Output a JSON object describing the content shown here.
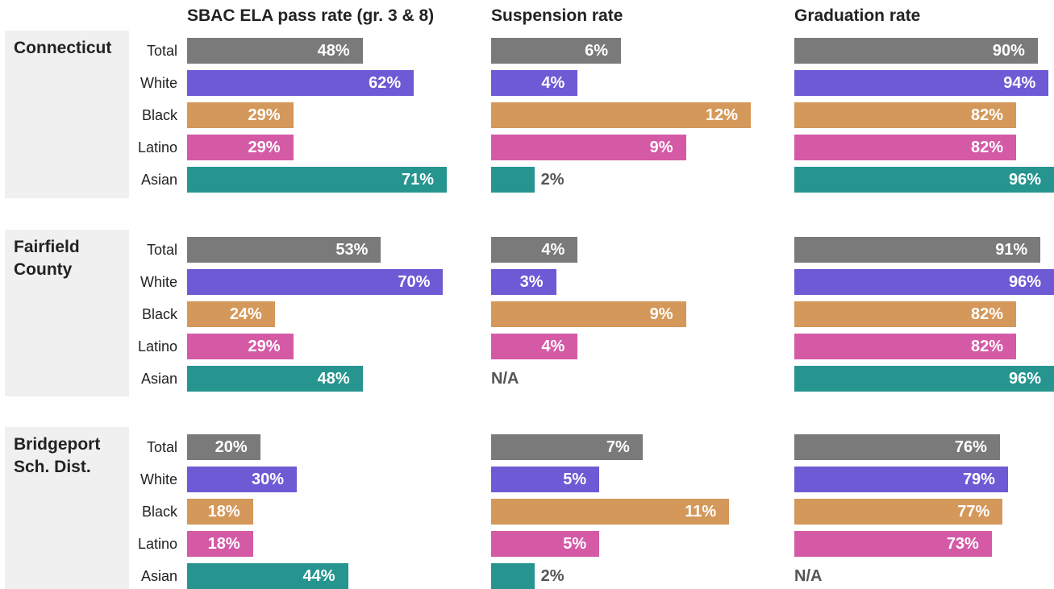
{
  "chart_data": {
    "type": "bar",
    "metrics": [
      "SBAC ELA pass rate (gr. 3 & 8)",
      "Suspension rate",
      "Graduation rate"
    ],
    "categories": [
      "Total",
      "White",
      "Black",
      "Latino",
      "Asian"
    ],
    "colors": [
      "#7a7a7a",
      "#6e5ad4",
      "#d4985a",
      "#d45aa6",
      "#26958f"
    ],
    "groups": [
      {
        "name": "Connecticut",
        "values": [
          [
            48,
            62,
            29,
            29,
            71
          ],
          [
            6,
            4,
            12,
            9,
            2
          ],
          [
            90,
            94,
            82,
            82,
            96
          ]
        ],
        "value_labels": [
          [
            "48%",
            "62%",
            "29%",
            "29%",
            "71%"
          ],
          [
            "6%",
            "4%",
            "12%",
            "9%",
            "2%"
          ],
          [
            "90%",
            "94%",
            "82%",
            "82%",
            "96%"
          ]
        ]
      },
      {
        "name": "Fairfield County",
        "values": [
          [
            53,
            70,
            24,
            29,
            48
          ],
          [
            4,
            3,
            9,
            4,
            null
          ],
          [
            91,
            96,
            82,
            82,
            96
          ]
        ],
        "value_labels": [
          [
            "53%",
            "70%",
            "24%",
            "29%",
            "48%"
          ],
          [
            "4%",
            "3%",
            "9%",
            "4%",
            "N/A"
          ],
          [
            "91%",
            "96%",
            "82%",
            "82%",
            "96%"
          ]
        ]
      },
      {
        "name": "Bridgeport Sch. Dist.",
        "values": [
          [
            20,
            30,
            18,
            18,
            44
          ],
          [
            7,
            5,
            11,
            5,
            2
          ],
          [
            76,
            79,
            77,
            73,
            null
          ]
        ],
        "value_labels": [
          [
            "20%",
            "30%",
            "18%",
            "18%",
            "44%"
          ],
          [
            "7%",
            "5%",
            "11%",
            "5%",
            "2%"
          ],
          [
            "76%",
            "79%",
            "77%",
            "73%",
            "N/A"
          ]
        ]
      }
    ]
  }
}
